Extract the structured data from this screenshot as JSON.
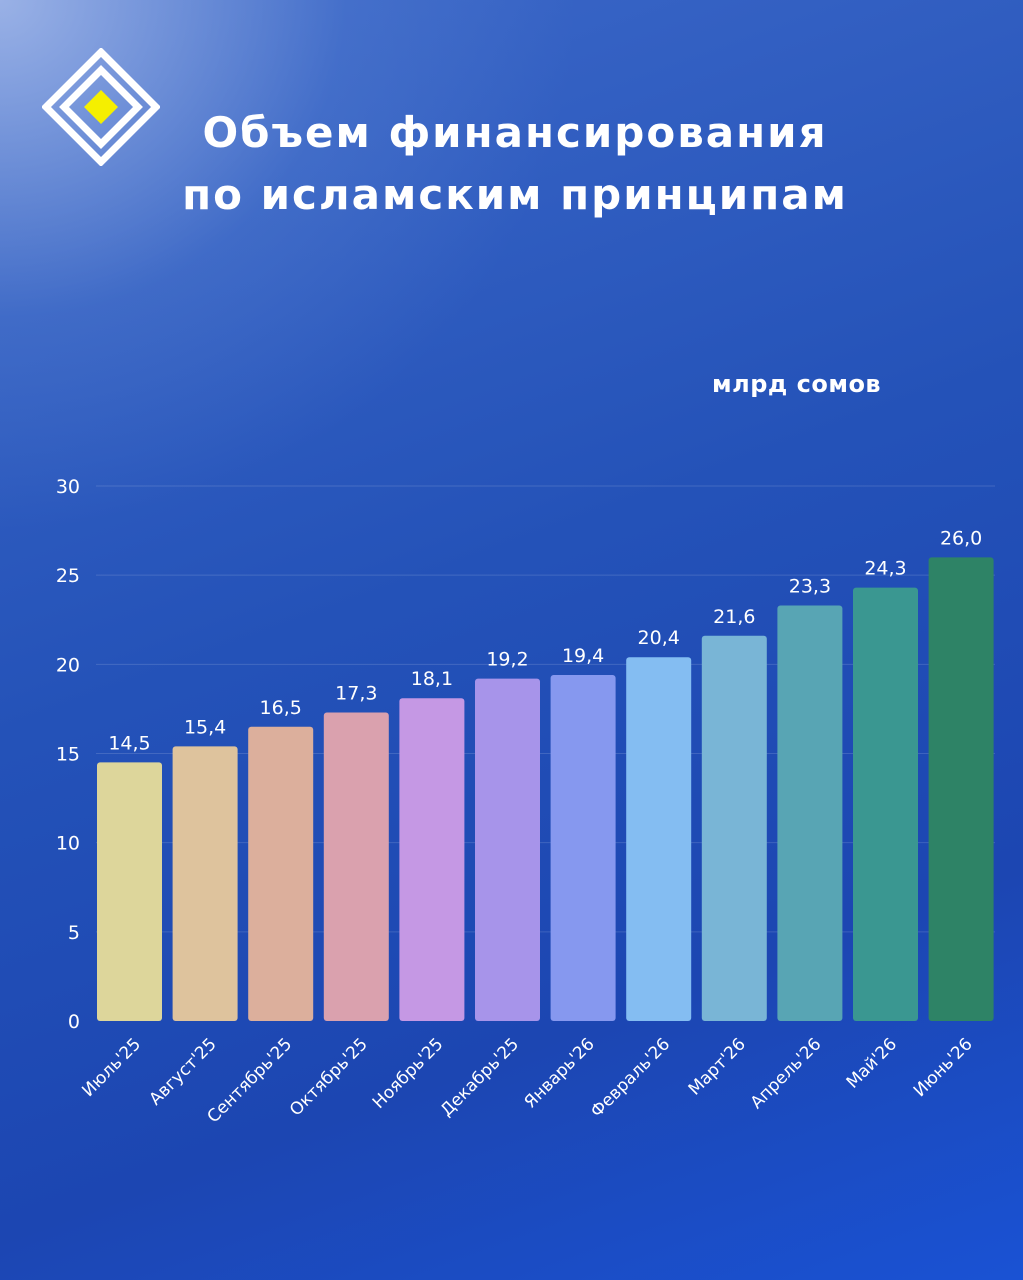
{
  "header": {
    "title_line1": "Объем финансирования",
    "title_line2": "по исламским принципам"
  },
  "logo": {
    "icon": "diamond-logo-icon",
    "accent_color": "#f5ef00",
    "line_color": "#ffffff"
  },
  "chart_data": {
    "type": "bar",
    "title": "Объем финансирования по исламским принципам",
    "unit_label": "млрд сомов",
    "categories": [
      "Июль'25",
      "Август'25",
      "Сентябрь'25",
      "Октябрь'25",
      "Ноябрь'25",
      "Декабрь'25",
      "Январь'26",
      "Февраль'26",
      "Март'26",
      "Апрель'26",
      "Май'26",
      "Июнь'26"
    ],
    "values": [
      14.5,
      15.4,
      16.5,
      17.3,
      18.1,
      19.2,
      19.4,
      20.4,
      21.6,
      23.3,
      24.3,
      26.0
    ],
    "value_labels": [
      "14,5",
      "15,4",
      "16,5",
      "17,3",
      "18,1",
      "19,2",
      "19,4",
      "20,4",
      "21,6",
      "23,3",
      "24,3",
      "26,0"
    ],
    "bar_colors": [
      "#ddd69b",
      "#dec39d",
      "#dcaf9c",
      "#daa1ae",
      "#c598e4",
      "#a794ea",
      "#8698ef",
      "#84bdf2",
      "#79b5d6",
      "#58a5b4",
      "#3a9791",
      "#2e8366"
    ],
    "yticks": [
      0,
      5,
      10,
      15,
      20,
      25,
      30
    ],
    "ylim": [
      0,
      30
    ],
    "grid": true
  }
}
